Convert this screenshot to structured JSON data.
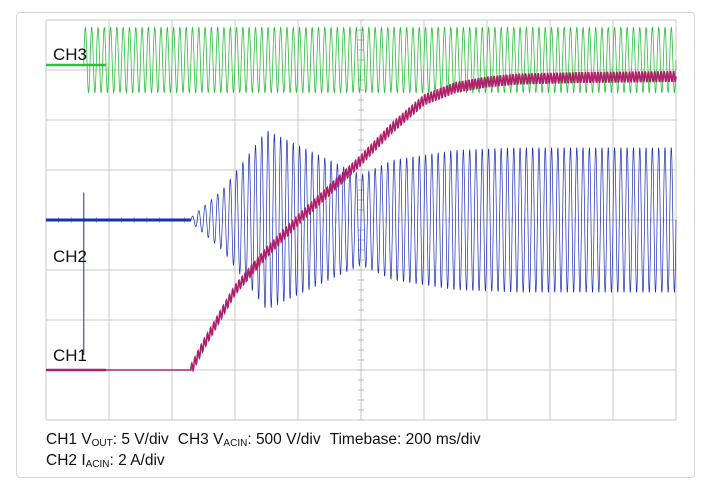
{
  "chart_data": {
    "type": "line",
    "title": "",
    "xlabel": "",
    "ylabel": "",
    "timebase_ms_per_div": 200,
    "x_divisions": 10,
    "y_divisions": 8,
    "grid": true,
    "colors": {
      "grid": "#c9c9c9",
      "ch1": "#b0206a",
      "ch2": "#1a2eb5",
      "ch3": "#2bbf3a"
    },
    "series": [
      {
        "name": "CH3",
        "label": "CH3",
        "quantity": "VACIN",
        "scale": "500 V/div",
        "off_level_div": 7.1,
        "on_time_ms": 120,
        "ac_center_div": 7.2,
        "ac_amplitude_div": 0.65,
        "frequency_hz": 50
      },
      {
        "name": "CH2",
        "label": "CH2",
        "quantity": "IACIN",
        "scale": "2 A/div",
        "baseline_div": 4.0,
        "start_time_ms": 460,
        "spike_time_ms": 120,
        "envelope_ms": [
          460,
          560,
          700,
          900,
          1000,
          1100,
          1300,
          1500,
          2000
        ],
        "envelope_div": [
          0.05,
          0.6,
          1.8,
          1.2,
          0.9,
          1.2,
          1.4,
          1.45,
          1.45
        ],
        "frequency_hz": 50
      },
      {
        "name": "CH1",
        "label": "CH1",
        "quantity": "VOUT",
        "scale": "5 V/div",
        "time_ms": [
          0,
          460,
          500,
          600,
          700,
          800,
          900,
          1000,
          1100,
          1200,
          1300,
          1400,
          1500,
          1700,
          2000
        ],
        "level_div": [
          1.0,
          1.0,
          1.5,
          2.6,
          3.35,
          4.0,
          4.6,
          5.2,
          5.85,
          6.4,
          6.65,
          6.76,
          6.82,
          6.85,
          6.87
        ],
        "ripple_div": 0.1
      }
    ]
  },
  "caption": {
    "ch1": {
      "prefix": "CH1 V",
      "sub": "OUT",
      "suffix": ": 5 V/div"
    },
    "ch3": {
      "prefix": "CH3 V",
      "sub": "ACIN",
      "suffix": ": 500 V/div"
    },
    "timebase": "Timebase: 200 ms/div",
    "ch2": {
      "prefix": "CH2 I",
      "sub": "ACIN",
      "suffix": ": 2 A/div"
    }
  }
}
